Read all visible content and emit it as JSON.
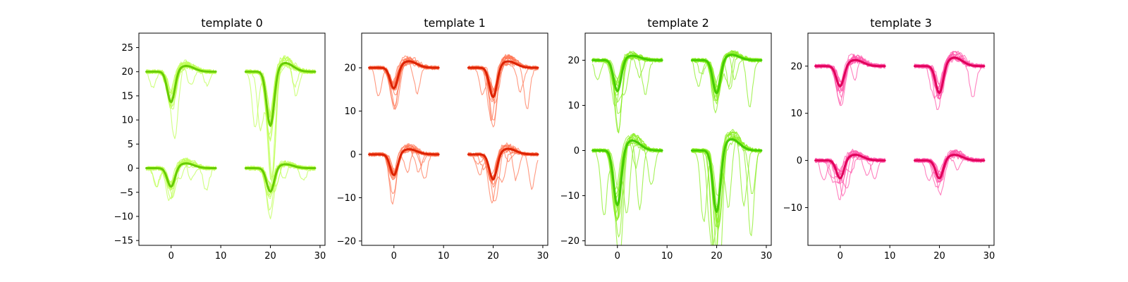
{
  "chart_data": [
    {
      "type": "line",
      "title": "template 0",
      "color": "#66cc00",
      "trace_color": "#bfff55",
      "xlim": [
        -6.5,
        31
      ],
      "ylim": [
        -16,
        28
      ],
      "xticks": [
        0,
        10,
        20,
        30
      ],
      "yticks": [
        -15,
        -10,
        -5,
        0,
        5,
        10,
        15,
        20,
        25
      ],
      "segments": [
        {
          "channel": 0,
          "x_start": -5,
          "x_end": 9,
          "baseline": 20,
          "peak_x": 0,
          "peak_y": 13.5,
          "rebound_y": 21.2
        },
        {
          "channel": 1,
          "x_start": 15,
          "x_end": 29,
          "baseline": 20,
          "peak_x": 20,
          "peak_y": 8.5,
          "rebound_y": 21.8
        },
        {
          "channel": 2,
          "x_start": -5,
          "x_end": 9,
          "baseline": 0,
          "peak_x": 0,
          "peak_y": -4,
          "rebound_y": 1.0
        },
        {
          "channel": 3,
          "x_start": 15,
          "x_end": 29,
          "baseline": 0,
          "peak_x": 20,
          "peak_y": -5,
          "rebound_y": 0.8
        }
      ]
    },
    {
      "type": "line",
      "title": "template 1",
      "color": "#dd2200",
      "trace_color": "#ff7755",
      "xlim": [
        -6.5,
        31
      ],
      "ylim": [
        -21,
        28
      ],
      "xticks": [
        0,
        10,
        20,
        30
      ],
      "yticks": [
        -20,
        -10,
        0,
        10,
        20
      ],
      "segments": [
        {
          "channel": 0,
          "x_start": -5,
          "x_end": 9,
          "baseline": 20,
          "peak_x": 0,
          "peak_y": 15,
          "rebound_y": 21.5
        },
        {
          "channel": 1,
          "x_start": 15,
          "x_end": 29,
          "baseline": 20,
          "peak_x": 20,
          "peak_y": 13,
          "rebound_y": 21.5
        },
        {
          "channel": 2,
          "x_start": -5,
          "x_end": 9,
          "baseline": 0,
          "peak_x": 0,
          "peak_y": -5,
          "rebound_y": 1.2
        },
        {
          "channel": 3,
          "x_start": 15,
          "x_end": 29,
          "baseline": 0,
          "peak_x": 20,
          "peak_y": -6,
          "rebound_y": 1.3
        }
      ]
    },
    {
      "type": "line",
      "title": "template 2",
      "color": "#44cc00",
      "trace_color": "#88ee22",
      "xlim": [
        -6.5,
        31
      ],
      "ylim": [
        -21,
        26
      ],
      "xticks": [
        0,
        10,
        20,
        30
      ],
      "yticks": [
        -20,
        -10,
        0,
        10,
        20
      ],
      "segments": [
        {
          "channel": 0,
          "x_start": -5,
          "x_end": 9,
          "baseline": 20,
          "peak_x": 0,
          "peak_y": 13,
          "rebound_y": 21.0
        },
        {
          "channel": 1,
          "x_start": 15,
          "x_end": 29,
          "baseline": 20,
          "peak_x": 20,
          "peak_y": 12.5,
          "rebound_y": 21.2
        },
        {
          "channel": 2,
          "x_start": -5,
          "x_end": 9,
          "baseline": 0,
          "peak_x": 0,
          "peak_y": -12.5,
          "rebound_y": 2.2
        },
        {
          "channel": 3,
          "x_start": 15,
          "x_end": 29,
          "baseline": 0,
          "peak_x": 20,
          "peak_y": -14,
          "rebound_y": 2.5
        }
      ]
    },
    {
      "type": "line",
      "title": "template 3",
      "color": "#e0005a",
      "trace_color": "#ff55aa",
      "xlim": [
        -6.5,
        31
      ],
      "ylim": [
        -18,
        27
      ],
      "xticks": [
        0,
        10,
        20,
        30
      ],
      "yticks": [
        -10,
        0,
        10,
        20
      ],
      "segments": [
        {
          "channel": 0,
          "x_start": -5,
          "x_end": 9,
          "baseline": 20,
          "peak_x": 0,
          "peak_y": 15.5,
          "rebound_y": 21.3
        },
        {
          "channel": 1,
          "x_start": 15,
          "x_end": 29,
          "baseline": 20,
          "peak_x": 20,
          "peak_y": 14,
          "rebound_y": 21.8
        },
        {
          "channel": 2,
          "x_start": -5,
          "x_end": 9,
          "baseline": 0,
          "peak_x": 0,
          "peak_y": -4,
          "rebound_y": 1.2
        },
        {
          "channel": 3,
          "x_start": 15,
          "x_end": 29,
          "baseline": 0,
          "peak_x": 20,
          "peak_y": -4,
          "rebound_y": 1.2
        }
      ]
    }
  ]
}
